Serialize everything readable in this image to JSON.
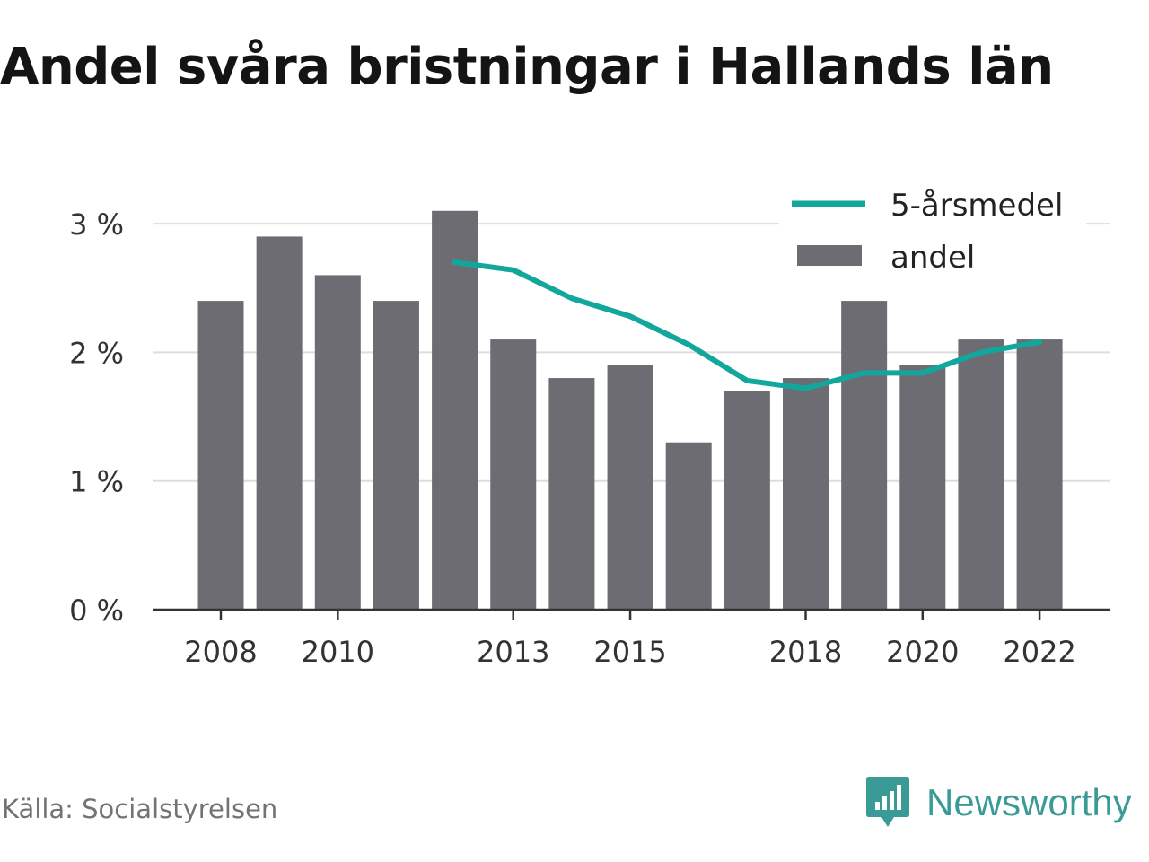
{
  "title": "Andel svåra bristningar i Hallands län",
  "source": "Källa: Socialstyrelsen",
  "brand": "Newsworthy",
  "colors": {
    "bar": "#6d6c73",
    "line": "#12a79d",
    "grid": "#dddddd",
    "axis": "#333333",
    "text": "#333333",
    "brand": "#3a9b96"
  },
  "chart_data": {
    "type": "bar",
    "title": "Andel svåra bristningar i Hallands län",
    "years": [
      2008,
      2009,
      2010,
      2011,
      2012,
      2013,
      2014,
      2015,
      2016,
      2017,
      2018,
      2019,
      2020,
      2021,
      2022
    ],
    "x_tick_labels": [
      "2008",
      "2010",
      "2013",
      "2015",
      "2018",
      "2020",
      "2022"
    ],
    "y_tick_labels": [
      "0 %",
      "1 %",
      "2 %",
      "3 %"
    ],
    "y_ticks": [
      0,
      1,
      2,
      3
    ],
    "ylim": [
      0,
      3.1
    ],
    "grid": true,
    "legend_position": "top-right",
    "series": [
      {
        "name": "andel",
        "type": "bar",
        "values": [
          2.4,
          2.9,
          2.6,
          2.4,
          3.1,
          2.1,
          1.8,
          1.9,
          1.3,
          1.7,
          1.8,
          2.4,
          1.9,
          2.1,
          2.1
        ]
      },
      {
        "name": "5-årsmedel",
        "type": "line",
        "values": [
          null,
          null,
          null,
          null,
          2.7,
          2.64,
          2.42,
          2.28,
          2.06,
          1.78,
          1.72,
          1.84,
          1.84,
          2.0,
          2.08
        ]
      }
    ]
  }
}
